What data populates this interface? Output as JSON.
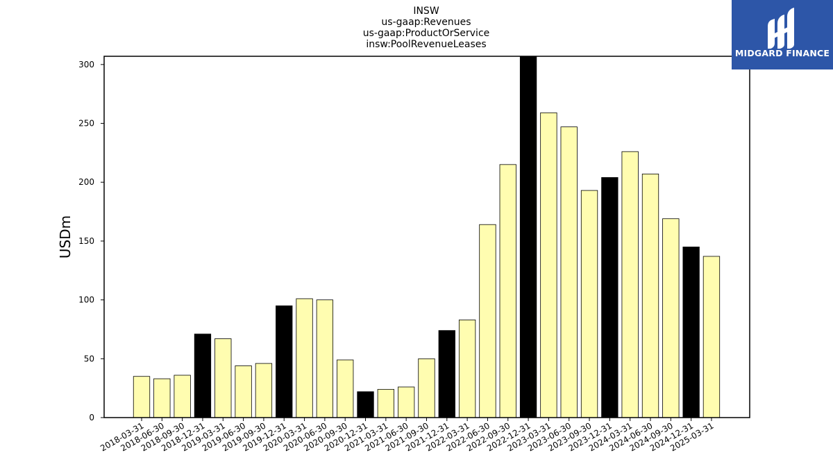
{
  "chart_data": {
    "type": "bar",
    "title_lines": [
      "INSW",
      "us-gaap:Revenues",
      "us-gaap:ProductOrService",
      "insw:PoolRevenueLeases"
    ],
    "xlabel": "",
    "ylabel": "USDm",
    "ylim": [
      0,
      307
    ],
    "yticks": [
      0,
      50,
      100,
      150,
      200,
      250,
      300
    ],
    "grid": false,
    "categories": [
      "2018-03-31",
      "2018-06-30",
      "2018-09-30",
      "2018-12-31",
      "2019-03-31",
      "2019-06-30",
      "2019-09-30",
      "2019-12-31",
      "2020-03-31",
      "2020-06-30",
      "2020-09-30",
      "2020-12-31",
      "2021-03-31",
      "2021-06-30",
      "2021-09-30",
      "2021-12-31",
      "2022-03-31",
      "2022-06-30",
      "2022-09-30",
      "2022-12-31",
      "2023-03-31",
      "2023-06-30",
      "2023-09-30",
      "2023-12-31",
      "2024-03-31",
      "2024-06-30",
      "2024-09-30",
      "2024-12-31",
      "2025-03-31"
    ],
    "values": [
      35,
      33,
      36,
      71,
      67,
      44,
      46,
      95,
      101,
      100,
      49,
      22,
      24,
      26,
      50,
      74,
      83,
      164,
      215,
      307,
      259,
      247,
      193,
      204,
      226,
      207,
      169,
      145,
      137
    ],
    "highlight": [
      false,
      false,
      false,
      true,
      false,
      false,
      false,
      true,
      false,
      false,
      false,
      true,
      false,
      false,
      false,
      true,
      false,
      false,
      false,
      true,
      false,
      false,
      false,
      true,
      false,
      false,
      false,
      true,
      false
    ],
    "colors": {
      "bar": "#fffdb0",
      "highlight": "#000000",
      "edge": "#000000",
      "logo_bg": "#2d56a8"
    }
  },
  "logo": {
    "text": "MIDGARD FINANCE",
    "icon": "midgard-logo-icon"
  }
}
